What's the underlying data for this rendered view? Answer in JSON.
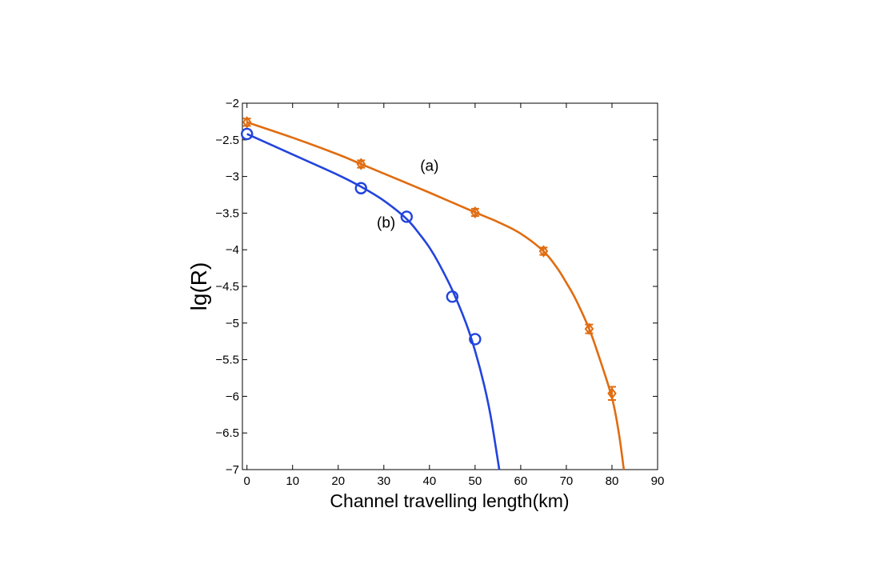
{
  "chart_data": {
    "type": "line",
    "title": "",
    "xlabel": "Channel travelling length(km)",
    "ylabel": "lg(R)",
    "xlim": [
      -1,
      90
    ],
    "ylim": [
      -7,
      -2
    ],
    "xticks": [
      0,
      10,
      20,
      30,
      40,
      50,
      60,
      70,
      80,
      90
    ],
    "yticks": [
      -2,
      -2.5,
      -3,
      -3.5,
      -4,
      -4.5,
      -5,
      -5.5,
      -6,
      -6.5,
      -7
    ],
    "grid": false,
    "series": [
      {
        "name": "(a)",
        "color": "#e06c10",
        "marker": "diamond",
        "points": [
          {
            "x": 0,
            "y": -2.26,
            "err": 0.05
          },
          {
            "x": 25,
            "y": -2.83,
            "err": 0.05
          },
          {
            "x": 50,
            "y": -3.49,
            "err": 0.05
          },
          {
            "x": 65,
            "y": -4.02,
            "err": 0.05
          },
          {
            "x": 75,
            "y": -5.08,
            "err": 0.06
          },
          {
            "x": 80,
            "y": -5.96,
            "err": 0.09
          }
        ],
        "curve": [
          {
            "x": 0,
            "y": -2.26
          },
          {
            "x": 10,
            "y": -2.47
          },
          {
            "x": 20,
            "y": -2.7
          },
          {
            "x": 25,
            "y": -2.83
          },
          {
            "x": 30,
            "y": -2.96
          },
          {
            "x": 40,
            "y": -3.22
          },
          {
            "x": 50,
            "y": -3.49
          },
          {
            "x": 55,
            "y": -3.62
          },
          {
            "x": 60,
            "y": -3.78
          },
          {
            "x": 65,
            "y": -4.02
          },
          {
            "x": 68,
            "y": -4.25
          },
          {
            "x": 70,
            "y": -4.45
          },
          {
            "x": 72,
            "y": -4.67
          },
          {
            "x": 75,
            "y": -5.08
          },
          {
            "x": 77,
            "y": -5.43
          },
          {
            "x": 80,
            "y": -6.02
          },
          {
            "x": 81.5,
            "y": -6.5
          },
          {
            "x": 82.6,
            "y": -7
          }
        ]
      },
      {
        "name": "(b)",
        "color": "#2244dd",
        "marker": "circle",
        "points": [
          {
            "x": 0,
            "y": -2.42
          },
          {
            "x": 25,
            "y": -3.16
          },
          {
            "x": 35,
            "y": -3.55
          },
          {
            "x": 45,
            "y": -4.64
          },
          {
            "x": 50,
            "y": -5.22
          }
        ],
        "curve": [
          {
            "x": 0,
            "y": -2.42
          },
          {
            "x": 10,
            "y": -2.7
          },
          {
            "x": 20,
            "y": -2.98
          },
          {
            "x": 25,
            "y": -3.14
          },
          {
            "x": 30,
            "y": -3.33
          },
          {
            "x": 35,
            "y": -3.58
          },
          {
            "x": 38,
            "y": -3.8
          },
          {
            "x": 40,
            "y": -3.97
          },
          {
            "x": 42,
            "y": -4.18
          },
          {
            "x": 45,
            "y": -4.55
          },
          {
            "x": 48,
            "y": -5.0
          },
          {
            "x": 50,
            "y": -5.38
          },
          {
            "x": 52,
            "y": -5.85
          },
          {
            "x": 53.5,
            "y": -6.3
          },
          {
            "x": 55.3,
            "y": -7
          }
        ]
      }
    ],
    "annotations": [
      {
        "text": "(a)",
        "x": 40,
        "y": -2.92
      },
      {
        "text": "(b)",
        "x": 30.5,
        "y": -3.7
      }
    ]
  }
}
